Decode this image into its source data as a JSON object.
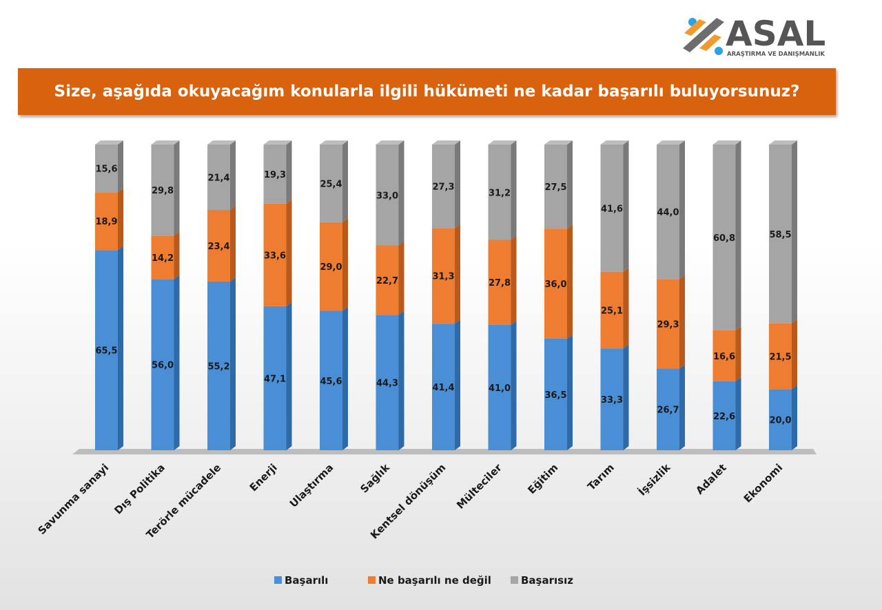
{
  "logo": {
    "name": "ASAL",
    "tagline": "ARAŞTIRMA VE DANIŞMANLIK"
  },
  "chart_data": {
    "type": "bar",
    "stacked": true,
    "title": "Size, aşağıda okuyacağım konularla ilgili hükümeti ne kadar başarılı buluyorsunuz?",
    "categories": [
      "Savunma sanayi",
      "Dış Politika",
      "Terörle mücadele",
      "Enerji",
      "Ulaştırma",
      "Sağlık",
      "Kentsel dönüşüm",
      "Mülteciler",
      "Eğitim",
      "Tarım",
      "İşsizlik",
      "Adalet",
      "Ekonomi"
    ],
    "series": [
      {
        "name": "Başarılı",
        "color": "#4a8fd6",
        "values": [
          65.5,
          56.0,
          55.2,
          47.1,
          45.6,
          44.3,
          41.4,
          41.0,
          36.5,
          33.3,
          26.7,
          22.6,
          20.0
        ]
      },
      {
        "name": "Ne başarılı ne değil",
        "color": "#ee7d31",
        "values": [
          18.9,
          14.2,
          23.4,
          33.6,
          29.0,
          22.7,
          31.3,
          27.8,
          36.0,
          25.1,
          29.3,
          16.6,
          21.5
        ]
      },
      {
        "name": "Başarısız",
        "color": "#a5a5a5",
        "values": [
          15.6,
          29.8,
          21.4,
          19.3,
          25.4,
          33.0,
          27.3,
          31.2,
          27.5,
          41.6,
          44.0,
          60.8,
          58.5
        ]
      }
    ],
    "ylim": [
      0,
      100
    ],
    "grid": false,
    "legend": "bottom",
    "data_labels": true
  }
}
